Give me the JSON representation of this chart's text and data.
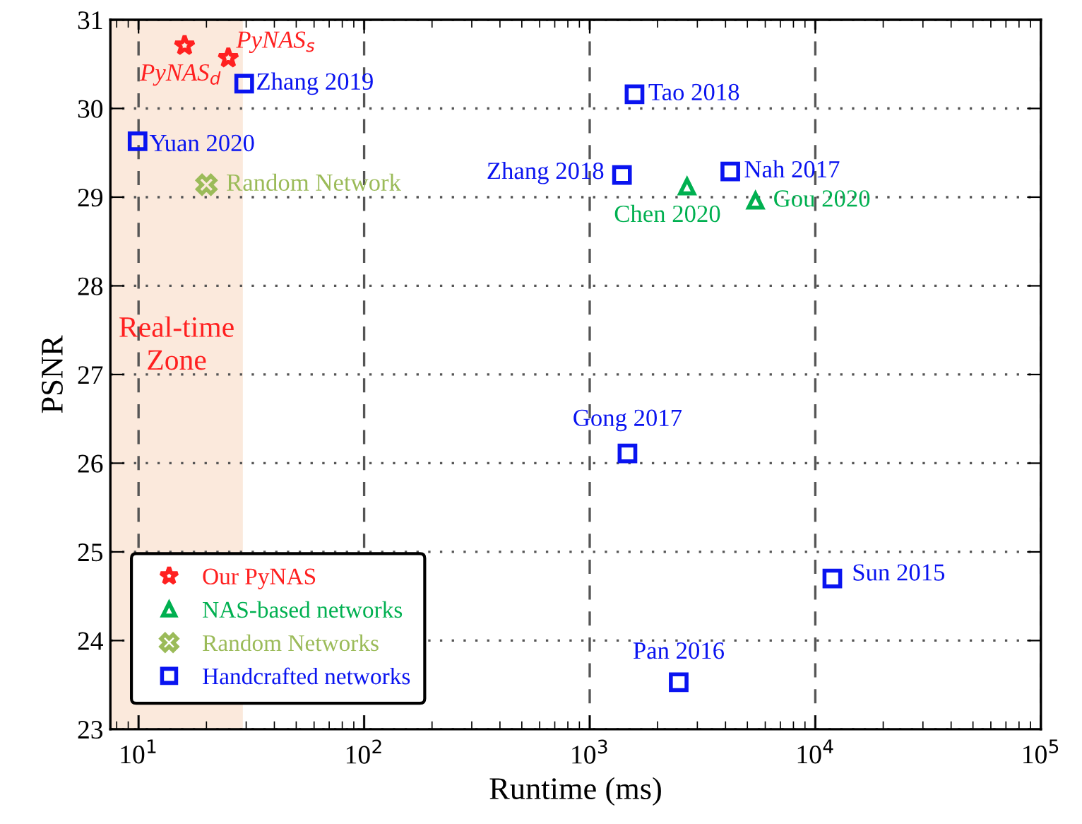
{
  "chart_data": {
    "type": "scatter",
    "xlabel": "Runtime (ms)",
    "ylabel": "PSNR",
    "log": "x",
    "xlim": [
      7.5,
      100000
    ],
    "ylim": [
      23,
      31
    ],
    "xticks": [
      {
        "value": 10,
        "label": "10$^{1}$"
      },
      {
        "value": 100,
        "label": "10$^{2}$"
      },
      {
        "value": 1000,
        "label": "10$^{3}$"
      },
      {
        "value": 10000,
        "label": "10$^{4}$"
      },
      {
        "value": 100000,
        "label": "10$^{5}$"
      }
    ],
    "yticks": [
      23,
      24,
      25,
      26,
      27,
      28,
      29,
      30,
      31
    ],
    "grid": true,
    "legend": "bottom left",
    "series": [
      {
        "name": "Our PyNAS",
        "color": "#ff2020",
        "marker": "star",
        "x": [
          16,
          25
        ],
        "values": [
          30.71,
          30.57
        ]
      },
      {
        "name": "NAS-based networks",
        "color": "#00b050",
        "marker": "triangle",
        "x": [
          2700,
          5430
        ],
        "values": [
          29.12,
          28.96
        ]
      },
      {
        "name": "Random Networks",
        "color": "#9bbb59",
        "marker": "cross",
        "x": [
          20
        ],
        "values": [
          29.14
        ]
      },
      {
        "name": "Handcrafted networks",
        "color": "#0a14f0",
        "marker": "square",
        "x": [
          29.4,
          9.9,
          1580,
          1390,
          4200,
          1470,
          11900,
          2480
        ],
        "values": [
          30.28,
          29.63,
          30.16,
          29.25,
          29.29,
          26.11,
          24.7,
          23.53
        ]
      }
    ],
    "bands": [
      {
        "axis": "x",
        "from": 7.5,
        "to": 29,
        "label": "Real-time Zone",
        "color": "#fbe9dc"
      }
    ],
    "annotations": [
      {
        "text": "PyNAS$_{s}$",
        "x": 25,
        "y": 30.57
      },
      {
        "text": "PyNAS$_{d}$",
        "x": 16,
        "y": 30.71
      },
      {
        "text": "Zhang 2019",
        "x": 29.4,
        "y": 30.28
      },
      {
        "text": "Yuan 2020",
        "x": 9.9,
        "y": 29.63
      },
      {
        "text": "Random Network",
        "x": 20,
        "y": 29.14
      },
      {
        "text": "Tao 2018",
        "x": 1580,
        "y": 30.16
      },
      {
        "text": "Zhang 2018",
        "x": 1390,
        "y": 29.25
      },
      {
        "text": "Nah 2017",
        "x": 4200,
        "y": 29.29
      },
      {
        "text": "Chen 2020",
        "x": 2700,
        "y": 29.12
      },
      {
        "text": "Gou 2020",
        "x": 5430,
        "y": 28.96
      },
      {
        "text": "Gong 2017",
        "x": 1470,
        "y": 26.11
      },
      {
        "text": "Sun 2015",
        "x": 11900,
        "y": 24.7
      },
      {
        "text": "Pan 2016",
        "x": 2480,
        "y": 23.53
      }
    ]
  }
}
